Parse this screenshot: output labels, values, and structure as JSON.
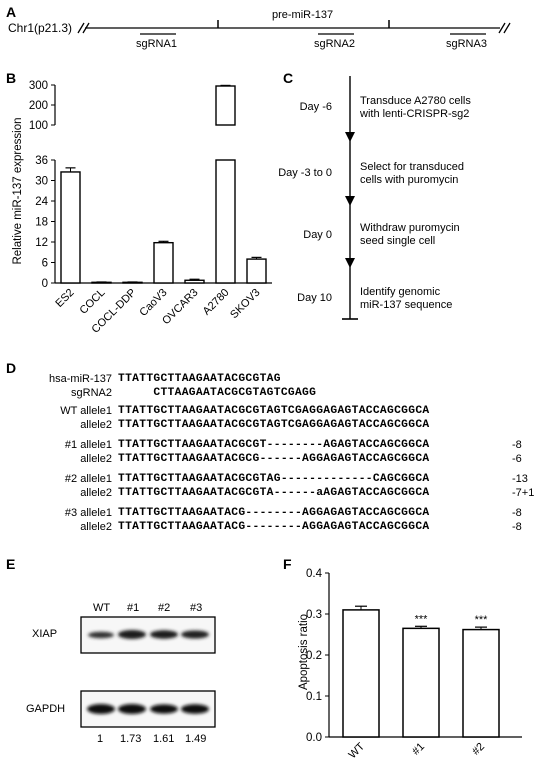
{
  "panel_labels": {
    "a": "A",
    "b": "B",
    "c": "C",
    "d": "D",
    "e": "E",
    "f": "F"
  },
  "panel_a": {
    "chrom": "Chr1(p21.3)",
    "pre_mirna": "pre-miR-137",
    "sgrnas": [
      "sgRNA1",
      "sgRNA2",
      "sgRNA3"
    ]
  },
  "panel_b": {
    "ylabel": "Relative miR-137 expression",
    "yticks_low": [
      "0",
      "6",
      "12",
      "18",
      "24",
      "30",
      "36"
    ],
    "yticks_high": [
      "100",
      "200",
      "300"
    ],
    "categories": [
      "ES2",
      "COCL",
      "COCL-DDP",
      "CaoV3",
      "OVCAR3",
      "A2780",
      "SKOV3"
    ]
  },
  "panel_c": {
    "steps": [
      {
        "day": "Day -6",
        "lines": [
          "Transduce A2780 cells",
          "with lenti-CRISPR-sg2"
        ]
      },
      {
        "day": "Day -3 to 0",
        "lines": [
          "Select for transduced",
          "cells with puromycin"
        ]
      },
      {
        "day": "Day 0",
        "lines": [
          "Withdraw puromycin",
          "seed single cell"
        ]
      },
      {
        "day": "Day 10",
        "lines": [
          "Identify genomic",
          "miR-137 sequence"
        ]
      }
    ]
  },
  "panel_d": {
    "rows": [
      {
        "label": "hsa-miR-137",
        "seq": "TTATTGCTTAAGAATACGCGTAG",
        "note": ""
      },
      {
        "label": "sgRNA2",
        "seq": "     CTTAAGAATACGCGTAGTCGAGG",
        "note": ""
      },
      {
        "label": "WT allele1",
        "seq": "TTATTGCTTAAGAATACGCGTAGTCGAGGAGAGTACCAGCGGCA",
        "note": ""
      },
      {
        "label": "allele2",
        "seq": "TTATTGCTTAAGAATACGCGTAGTCGAGGAGAGTACCAGCGGCA",
        "note": ""
      },
      {
        "label": "#1 allele1",
        "seq": "TTATTGCTTAAGAATACGCGT--------AGAGTACCAGCGGCA",
        "note": "-8"
      },
      {
        "label": "allele2",
        "seq": "TTATTGCTTAAGAATACGCG------AGGAGAGTACCAGCGGCA",
        "note": "-6"
      },
      {
        "label": "#2 allele1",
        "seq": "TTATTGCTTAAGAATACGCGTAG-------------CAGCGGCA",
        "note": "-13"
      },
      {
        "label": "allele2",
        "seq": "TTATTGCTTAAGAATACGCGTA------aAGAGTACCAGCGGCA",
        "note": "-7+1"
      },
      {
        "label": "#3 allele1",
        "seq": "TTATTGCTTAAGAATACG--------AGGAGAGTACCAGCGGCA",
        "note": "-8"
      },
      {
        "label": "allele2",
        "seq": "TTATTGCTTAAGAATACG--------AGGAGAGTACCAGCGGCA",
        "note": "-8"
      }
    ]
  },
  "panel_e": {
    "lanes": [
      "WT",
      "#1",
      "#2",
      "#3"
    ],
    "blots": [
      "XIAP",
      "GAPDH"
    ],
    "quant": [
      "1",
      "1.73",
      "1.61",
      "1.49"
    ]
  },
  "panel_f": {
    "ylabel": "Apoptosis ratio",
    "yticks": [
      "0.0",
      "0.1",
      "0.2",
      "0.3",
      "0.4"
    ],
    "categories": [
      "WT",
      "#1",
      "#2"
    ],
    "significance": [
      "",
      "***",
      "***"
    ]
  },
  "chart_data": [
    {
      "panel": "B",
      "type": "bar",
      "categories": [
        "ES2",
        "COCL",
        "COCL-DDP",
        "CaoV3",
        "OVCAR3",
        "A2780",
        "SKOV3"
      ],
      "values": [
        32.5,
        0.2,
        0.2,
        11.8,
        0.8,
        295,
        7.0
      ],
      "errors": [
        1.2,
        0.1,
        0.1,
        0.4,
        0.3,
        3,
        0.5
      ],
      "ylabel": "Relative miR-137 expression",
      "ylim": [
        0,
        300
      ],
      "axis_break": [
        36,
        50
      ],
      "fill": "#ffffff",
      "stroke": "#000000"
    },
    {
      "panel": "F",
      "type": "bar",
      "categories": [
        "WT",
        "#1",
        "#2"
      ],
      "values": [
        0.31,
        0.265,
        0.262
      ],
      "errors": [
        0.009,
        0.005,
        0.006
      ],
      "ylabel": "Apoptosis ratio",
      "ylim": [
        0,
        0.4
      ],
      "fills": [
        "#ffffff",
        "#ffffff",
        "#ffffff"
      ],
      "stroke": "#000000"
    }
  ]
}
